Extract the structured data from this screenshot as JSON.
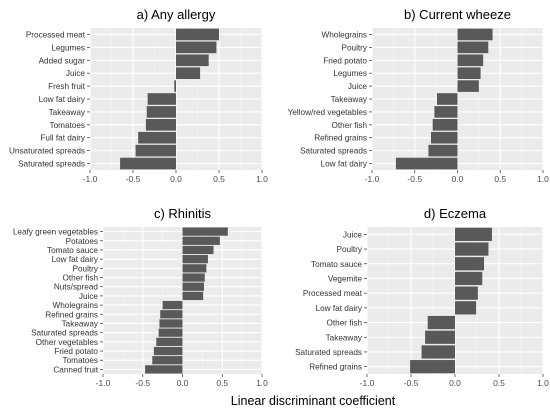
{
  "xlabel": "Linear discriminant coefficient",
  "bar_color": "#595959",
  "panel_bg": "#ebebeb",
  "chart_data": [
    {
      "type": "bar",
      "orientation": "horizontal",
      "title": "a) Any allergy",
      "xlim": [
        -1.0,
        1.0
      ],
      "xticks": [
        "-1.0",
        "-0.5",
        "0.0",
        "0.5",
        "1.0"
      ],
      "categories": [
        "Processed meat",
        "Legumes",
        "Added sugar",
        "Juice",
        "Fresh fruit",
        "Low fat dairy",
        "Takeaway",
        "Tomatoes",
        "Full fat dairy",
        "Unsaturated spreads",
        "Saturated spreads"
      ],
      "values": [
        0.5,
        0.47,
        0.38,
        0.28,
        -0.02,
        -0.33,
        -0.34,
        -0.35,
        -0.44,
        -0.47,
        -0.65
      ]
    },
    {
      "type": "bar",
      "orientation": "horizontal",
      "title": "b) Current wheeze",
      "xlim": [
        -1.0,
        1.0
      ],
      "xticks": [
        "-1.0",
        "-0.5",
        "0.0",
        "0.5",
        "1.0"
      ],
      "categories": [
        "Wholegrains",
        "Poultry",
        "Fried potato",
        "Legumes",
        "Juice",
        "Takeaway",
        "Yellow/red vegetables",
        "Other fish",
        "Refined grains",
        "Saturated spreads",
        "Low fat dairy"
      ],
      "values": [
        0.41,
        0.36,
        0.3,
        0.27,
        0.25,
        -0.24,
        -0.27,
        -0.29,
        -0.31,
        -0.34,
        -0.72
      ]
    },
    {
      "type": "bar",
      "orientation": "horizontal",
      "title": "c) Rhinitis",
      "xlim": [
        -1.0,
        1.0
      ],
      "xticks": [
        "-1.0",
        "-0.5",
        "0.0",
        "0.5",
        "1.0"
      ],
      "categories": [
        "Leafy green vegetables",
        "Potatoes",
        "Tomato sauce",
        "Low fat dairy",
        "Poultry",
        "Other fish",
        "Nuts/spread",
        "Juice",
        "Wholegrains",
        "Refined grains",
        "Takeaway",
        "Saturated spreads",
        "Other vegetables",
        "Fried potato",
        "Tomatoes",
        "Canned fruit"
      ],
      "values": [
        0.57,
        0.47,
        0.39,
        0.32,
        0.3,
        0.28,
        0.27,
        0.26,
        -0.25,
        -0.28,
        -0.29,
        -0.3,
        -0.33,
        -0.36,
        -0.38,
        -0.47
      ]
    },
    {
      "type": "bar",
      "orientation": "horizontal",
      "title": "d) Eczema",
      "xlim": [
        -1.0,
        1.0
      ],
      "xticks": [
        "-1.0",
        "-0.5",
        "0.0",
        "0.5",
        "1.0"
      ],
      "categories": [
        "Juice",
        "Poultry",
        "Tomato sauce",
        "Vegemite",
        "Processed meat",
        "Low fat dairy",
        "Other fish",
        "Takeaway",
        "Saturated spreads",
        "Refined grains"
      ],
      "values": [
        0.42,
        0.38,
        0.33,
        0.31,
        0.26,
        0.24,
        -0.31,
        -0.34,
        -0.38,
        -0.51
      ]
    }
  ]
}
